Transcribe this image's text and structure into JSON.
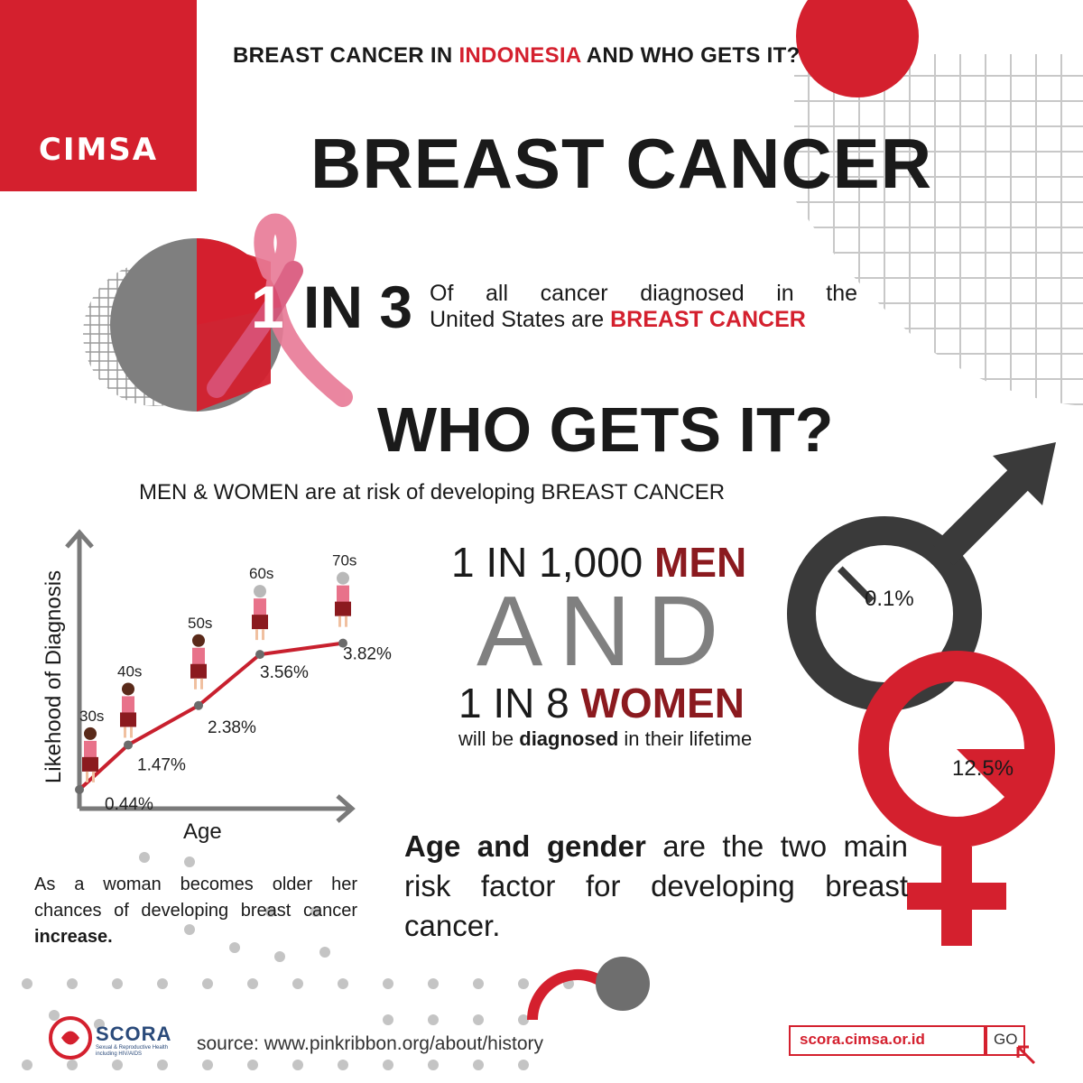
{
  "brand": {
    "name": "CIMSA",
    "logo_icon": "cimsa-heart-hand-logo"
  },
  "header": {
    "title_part1": "BREAST CANCER IN ",
    "title_highlight": "INDONESIA",
    "title_part2": " AND WHO GETS IT?",
    "main_title": "BREAST CANCER"
  },
  "stat1": {
    "one": "1",
    "in_three": "IN 3",
    "text_line1": "Of all cancer diagnosed in the",
    "text_line2_plain": "United States are ",
    "text_line2_highlight": "BREAST CANCER"
  },
  "who": {
    "heading": "WHO GETS IT?",
    "subtitle": "MEN & WOMEN are at risk of developing BREAST CANCER"
  },
  "chart_data": {
    "type": "line",
    "title": "",
    "xlabel": "Age",
    "ylabel": "Likehood of Diagnosis",
    "categories": [
      "30s",
      "40s",
      "50s",
      "60s",
      "70s"
    ],
    "values": [
      0.44,
      1.47,
      2.38,
      3.56,
      3.82
    ],
    "value_labels": [
      "0.44%",
      "1.47%",
      "2.38%",
      "3.56%",
      "3.82%"
    ],
    "series_color": "#c8202e",
    "grid": false
  },
  "gender": {
    "men_prefix": "1 IN 1,000 ",
    "men_highlight": "MEN",
    "and": "AND",
    "women_prefix": "1 IN 8 ",
    "women_highlight": "WOMEN",
    "will_plain1": "will be ",
    "will_bold": "diagnosed",
    "will_plain2": " in their lifetime",
    "men_pct": "0.1%",
    "women_pct": "12.5%",
    "men_value": 0.001,
    "women_value": 0.125,
    "male_symbol_icon": "male-symbol-icon",
    "female_symbol_icon": "female-symbol-icon"
  },
  "summary": {
    "bold": "Age and gender",
    "rest": " are the two main risk factor for developing breast cancer."
  },
  "note": {
    "plain": "As a woman becomes older her chances of developing breast cancer ",
    "bold": "increase."
  },
  "footer": {
    "org": "SCORA",
    "org_sub": "Sexual & Reproductive Health including HIV/AIDS",
    "source": "source: www.pinkribbon.org/about/history",
    "url": "scora.cimsa.or.id",
    "go": "GO"
  },
  "colors": {
    "accent": "#d4202e",
    "dark_red": "#8b1a1f",
    "gray": "#808080",
    "dark": "#333333"
  }
}
